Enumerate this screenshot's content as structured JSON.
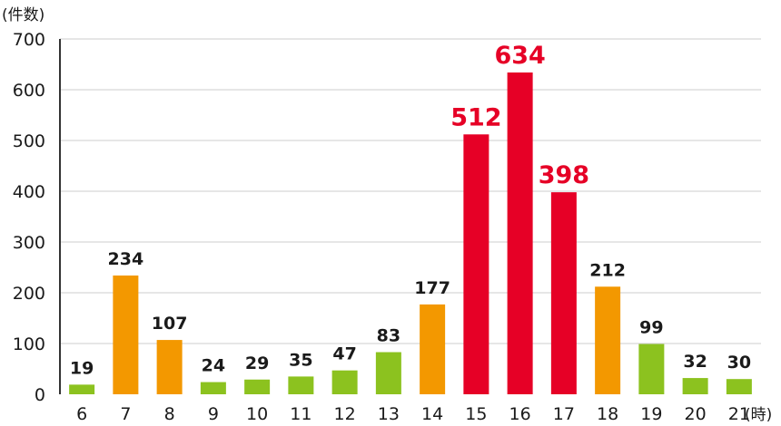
{
  "chart_data": {
    "type": "bar",
    "y_unit": "(件数)",
    "x_unit": "(時)",
    "categories": [
      "6",
      "7",
      "8",
      "9",
      "10",
      "11",
      "12",
      "13",
      "14",
      "15",
      "16",
      "17",
      "18",
      "19",
      "20",
      "21"
    ],
    "values": [
      19,
      234,
      107,
      24,
      29,
      35,
      47,
      83,
      177,
      512,
      634,
      398,
      212,
      99,
      32,
      30
    ],
    "bar_levels": [
      "low",
      "mid",
      "mid",
      "low",
      "low",
      "low",
      "low",
      "low",
      "mid",
      "high",
      "high",
      "high",
      "mid",
      "low",
      "low",
      "low"
    ],
    "ylim": [
      0,
      700
    ],
    "yticks": [
      "0",
      "100",
      "200",
      "300",
      "400",
      "500",
      "600",
      "700"
    ],
    "grid": true,
    "legend": "none"
  },
  "colors": {
    "low": "#8cc21f",
    "mid": "#f39800",
    "high": "#e60026",
    "grid": "#cccccc",
    "axis": "#333333"
  }
}
